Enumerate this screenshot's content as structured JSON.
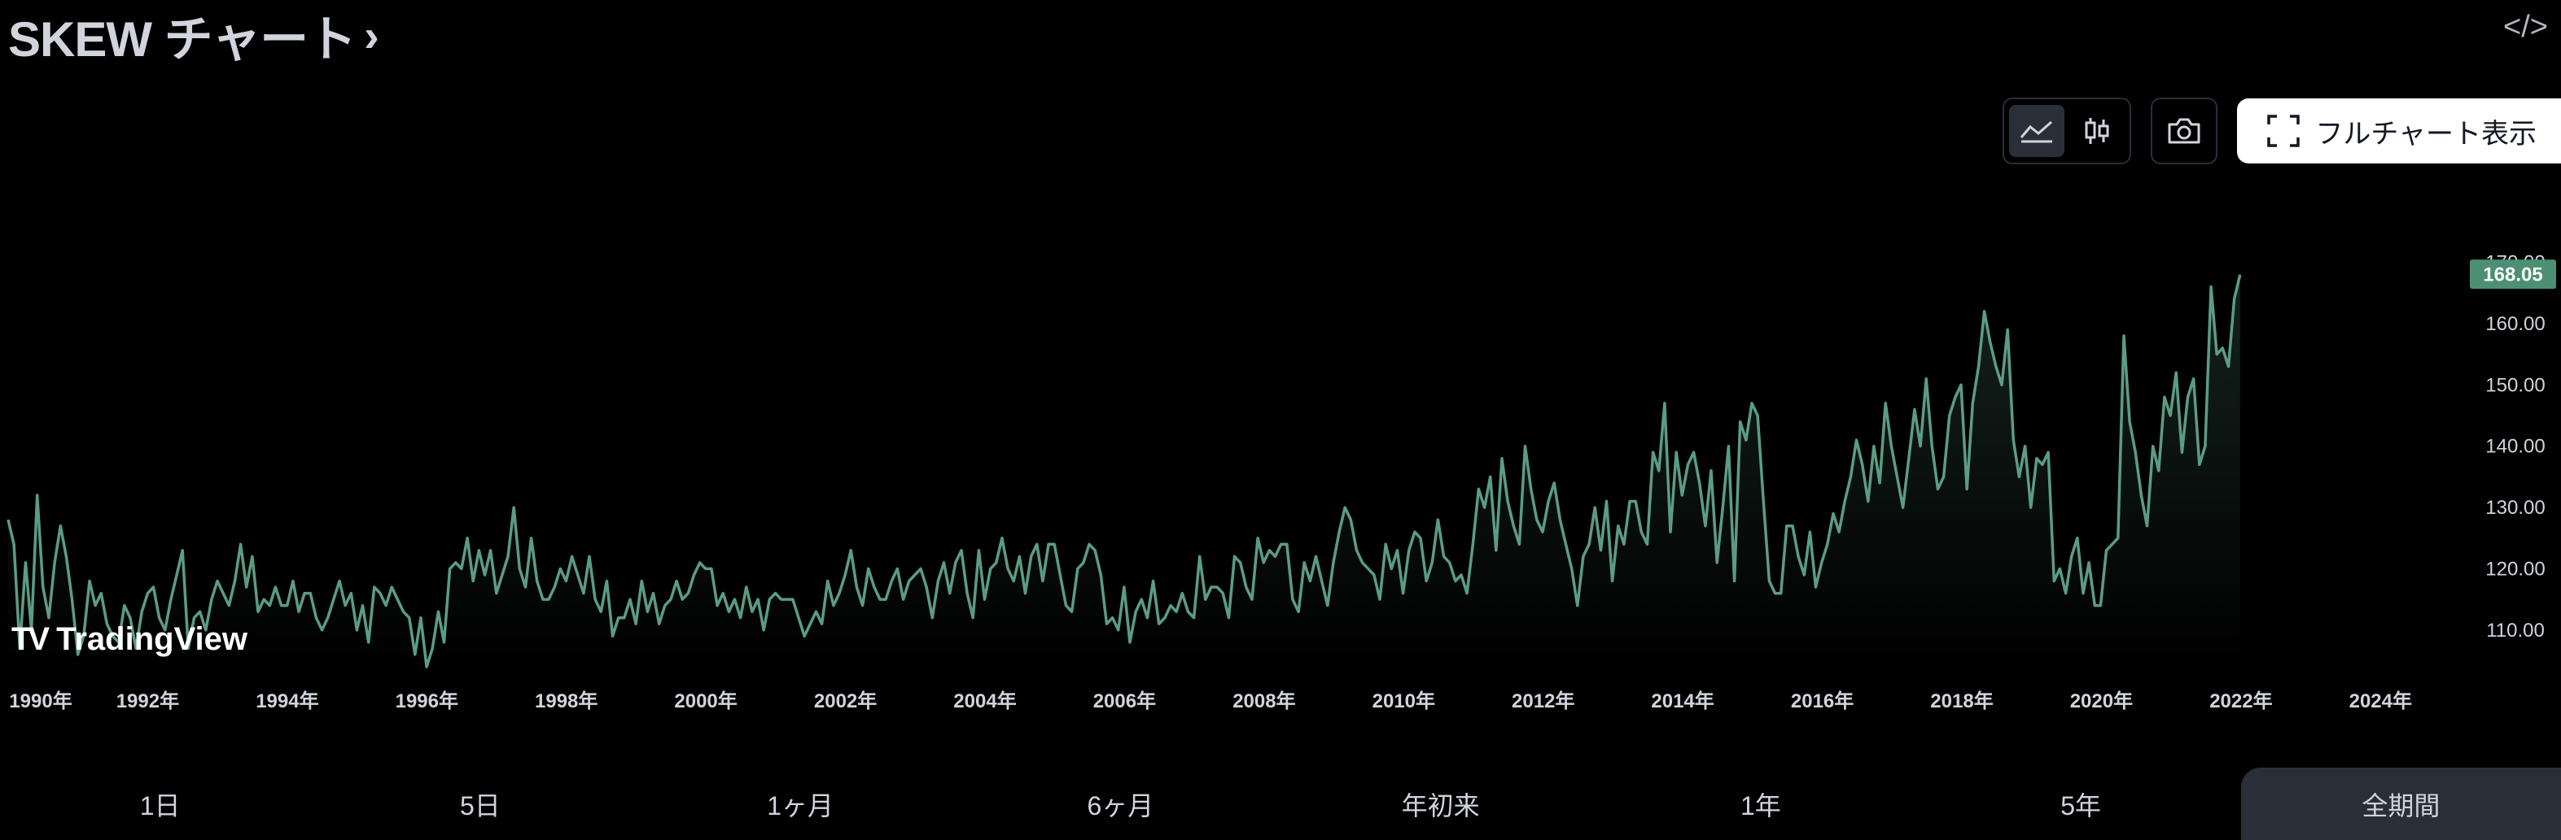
{
  "header": {
    "title": "SKEW チャート",
    "chevron": "›",
    "embed_icon": "code-icon"
  },
  "toolbar": {
    "chart_type_buttons": [
      {
        "name": "area-chart-icon",
        "active": true
      },
      {
        "name": "candlestick-icon",
        "active": false
      }
    ],
    "snapshot_icon": "camera-icon",
    "fullchart_label": "フルチャート表示"
  },
  "logo_text": "TradingView",
  "range_tabs": [
    {
      "label": "1日",
      "active": false
    },
    {
      "label": "5日",
      "active": false
    },
    {
      "label": "1ヶ月",
      "active": false
    },
    {
      "label": "6ヶ月",
      "active": false
    },
    {
      "label": "年初来",
      "active": false
    },
    {
      "label": "1年",
      "active": false
    },
    {
      "label": "5年",
      "active": false
    },
    {
      "label": "全期間",
      "active": true
    }
  ],
  "colors": {
    "line": "#5b9c84",
    "background": "#000000",
    "last_badge": "#4d8f74"
  },
  "chart_data": {
    "type": "area",
    "x_start": 1990.0,
    "x_step": 0.0833,
    "x_ticks": [
      "1990年",
      "1992年",
      "1994年",
      "1996年",
      "1998年",
      "2000年",
      "2002年",
      "2004年",
      "2006年",
      "2008年",
      "2010年",
      "2012年",
      "2014年",
      "2016年",
      "2018年",
      "2020年",
      "2022年",
      "2024年"
    ],
    "y_ticks": [
      "110.00",
      "120.00",
      "130.00",
      "140.00",
      "150.00",
      "160.00",
      "170.00"
    ],
    "ylim": [
      104,
      173
    ],
    "xlim": [
      1990.0,
      2025.0
    ],
    "last_value": "168.05",
    "values": [
      128,
      124,
      107,
      121,
      110,
      132,
      117,
      112,
      121,
      127,
      122,
      115,
      106,
      109,
      118,
      114,
      116,
      111,
      109,
      108,
      114,
      112,
      107,
      113,
      116,
      117,
      112,
      110,
      115,
      119,
      123,
      107,
      112,
      113,
      110,
      115,
      118,
      116,
      114,
      118,
      124,
      117,
      122,
      113,
      115,
      114,
      117,
      114,
      114,
      118,
      113,
      116,
      116,
      112,
      110,
      112,
      115,
      118,
      114,
      116,
      110,
      114,
      108,
      117,
      116,
      114,
      117,
      115,
      113,
      112,
      106,
      112,
      104,
      107,
      113,
      108,
      120,
      121,
      120,
      125,
      118,
      123,
      119,
      123,
      116,
      119,
      122,
      130,
      120,
      117,
      125,
      118,
      115,
      115,
      117,
      120,
      118,
      122,
      119,
      116,
      122,
      115,
      113,
      118,
      109,
      112,
      112,
      115,
      111,
      118,
      113,
      116,
      111,
      114,
      115,
      118,
      115,
      116,
      119,
      121,
      120,
      120,
      114,
      116,
      113,
      115,
      112,
      117,
      113,
      115,
      110,
      115,
      116,
      115,
      115,
      115,
      112,
      109,
      111,
      113,
      111,
      118,
      114,
      116,
      119,
      123,
      117,
      114,
      120,
      117,
      115,
      115,
      118,
      120,
      115,
      118,
      119,
      120,
      117,
      112,
      118,
      121,
      116,
      121,
      123,
      116,
      112,
      123,
      115,
      120,
      121,
      125,
      120,
      118,
      122,
      116,
      122,
      124,
      118,
      124,
      124,
      119,
      114,
      113,
      120,
      121,
      124,
      123,
      119,
      111,
      112,
      110,
      117,
      108,
      113,
      115,
      112,
      118,
      111,
      112,
      114,
      113,
      116,
      113,
      112,
      122,
      115,
      117,
      117,
      116,
      112,
      122,
      121,
      117,
      115,
      125,
      121,
      123,
      122,
      124,
      124,
      115,
      113,
      121,
      118,
      122,
      118,
      114,
      121,
      126,
      130,
      128,
      123,
      121,
      120,
      119,
      115,
      124,
      120,
      123,
      116,
      123,
      126,
      125,
      118,
      121,
      128,
      122,
      121,
      118,
      119,
      116,
      124,
      133,
      130,
      135,
      123,
      138,
      131,
      127,
      124,
      140,
      133,
      128,
      126,
      131,
      134,
      128,
      124,
      120,
      114,
      122,
      124,
      130,
      123,
      131,
      118,
      127,
      124,
      131,
      131,
      126,
      124,
      139,
      136,
      147,
      126,
      139,
      132,
      137,
      139,
      134,
      127,
      136,
      121,
      130,
      140,
      118,
      144,
      141,
      147,
      145,
      131,
      118,
      116,
      116,
      127,
      127,
      122,
      119,
      126,
      117,
      121,
      124,
      129,
      126,
      131,
      135,
      141,
      137,
      131,
      140,
      134,
      147,
      140,
      135,
      130,
      138,
      146,
      140,
      151,
      140,
      133,
      135,
      145,
      148,
      150,
      133,
      147,
      153,
      162,
      157,
      153,
      150,
      159,
      141,
      135,
      140,
      130,
      138,
      137,
      139,
      118,
      120,
      116,
      122,
      125,
      116,
      121,
      114,
      114,
      123,
      124,
      125,
      158,
      144,
      139,
      132,
      127,
      140,
      136,
      148,
      145,
      152,
      139,
      148,
      151,
      137,
      140,
      166,
      155,
      156,
      153,
      164,
      168
    ]
  }
}
